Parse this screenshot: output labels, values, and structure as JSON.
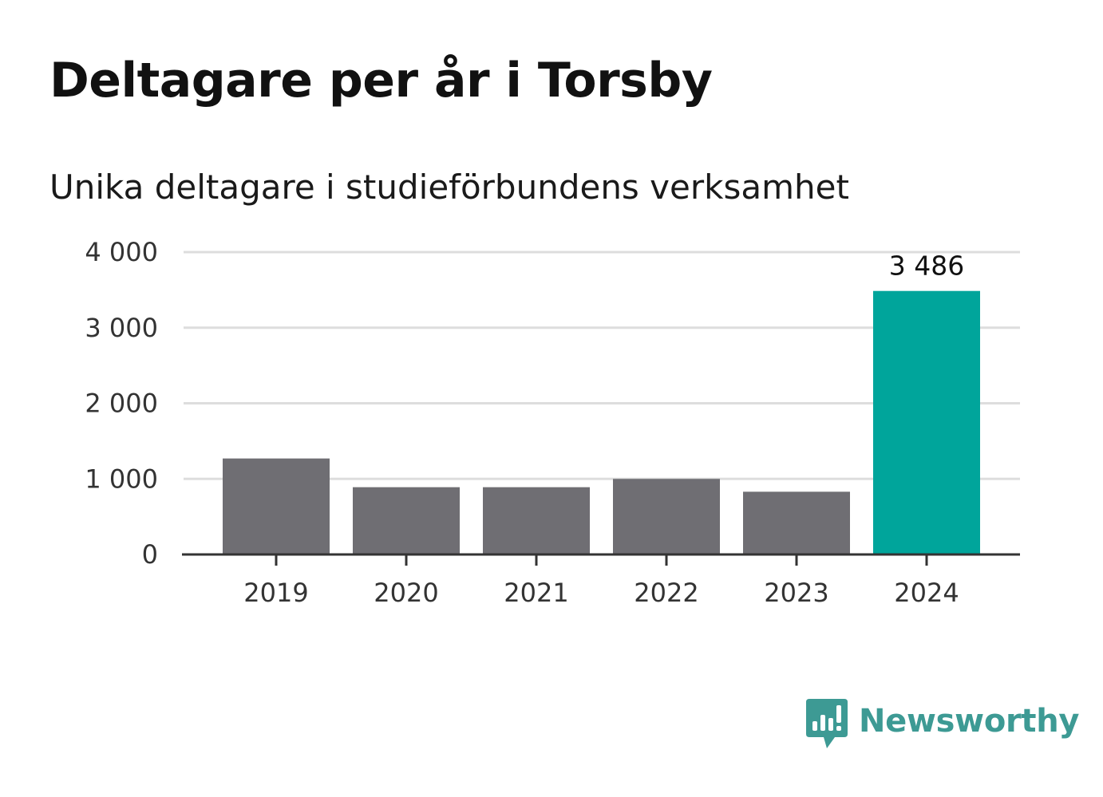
{
  "chart_data": {
    "type": "bar",
    "title": "Deltagare per år i Torsby",
    "subtitle": "Unika deltagare i studieförbundens verksamhet",
    "categories": [
      "2019",
      "2020",
      "2021",
      "2022",
      "2023",
      "2024"
    ],
    "values": [
      1270,
      890,
      890,
      1000,
      830,
      3486
    ],
    "value_labels": [
      "",
      "",
      "",
      "",
      "",
      "3 486"
    ],
    "ylim": [
      0,
      4000
    ],
    "yticks": [
      0,
      1000,
      2000,
      3000,
      4000
    ],
    "ytick_labels": [
      "0",
      "1 000",
      "2 000",
      "3 000",
      "4 000"
    ],
    "xlabel": "",
    "ylabel": "",
    "grid": true,
    "colors": {
      "default_bar": "#6f6e73",
      "highlight_bar": "#00a59b",
      "grid": "#dddddd",
      "axis": "#333333"
    },
    "highlight_index": 5
  },
  "branding": {
    "name": "Newsworthy",
    "logo_icon": "newsworthy-logo-icon",
    "color": "#3d9a94"
  }
}
